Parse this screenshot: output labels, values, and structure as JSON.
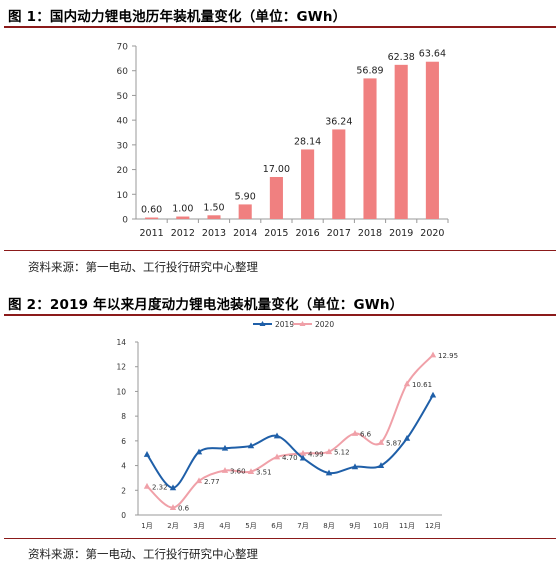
{
  "figure1": {
    "title": "图 1：国内动力锂电池历年装机量变化（单位：GWh）",
    "source": "资料来源：第一电动、工行投行研究中心整理"
  },
  "figure2": {
    "title": "图 2：2019 年以来月度动力锂电池装机量变化（单位：GWh）",
    "source": "资料来源：第一电动、工行投行研究中心整理"
  },
  "colors": {
    "bar": "#f08080",
    "series2019": "#1f5fa8",
    "series2020": "#f0a0a8",
    "rule": "#8b1a1a"
  },
  "chart_data": [
    {
      "type": "bar",
      "title": "国内动力锂电池历年装机量变化（单位：GWh）",
      "categories": [
        "2011",
        "2012",
        "2013",
        "2014",
        "2015",
        "2016",
        "2017",
        "2018",
        "2019",
        "2020"
      ],
      "values": [
        0.6,
        1.0,
        1.5,
        5.9,
        17.0,
        28.14,
        36.24,
        56.89,
        62.38,
        63.64
      ],
      "value_labels": [
        "0.60",
        "1.00",
        "1.50",
        "5.90",
        "17.00",
        "28.14",
        "36.24",
        "56.89",
        "62.38",
        "63.64"
      ],
      "y_ticks": [
        "0",
        "10",
        "20",
        "30",
        "40",
        "50",
        "60",
        "70"
      ],
      "ylim": [
        0,
        70
      ],
      "grid": false
    },
    {
      "type": "line",
      "title": "2019 年以来月度动力锂电池装机量变化（单位：GWh）",
      "categories": [
        "1月",
        "2月",
        "3月",
        "4月",
        "5月",
        "6月",
        "7月",
        "8月",
        "9月",
        "10月",
        "11月",
        "12月"
      ],
      "series": [
        {
          "name": "2019",
          "values": [
            4.9,
            2.2,
            5.1,
            5.4,
            5.6,
            6.4,
            4.6,
            3.4,
            3.9,
            4.0,
            6.2,
            9.7
          ],
          "labels": []
        },
        {
          "name": "2020",
          "values": [
            2.32,
            0.6,
            2.77,
            3.6,
            3.51,
            4.7,
            4.99,
            5.12,
            6.6,
            5.87,
            10.61,
            12.95
          ],
          "labels": [
            "2.32",
            "0.6",
            "2.77",
            "3.60",
            "3.51",
            "4.70",
            "4.99",
            "5.12",
            "6.6",
            "5.87",
            "10.61",
            "12.95"
          ]
        }
      ],
      "y_ticks": [
        "0",
        "2",
        "4",
        "6",
        "8",
        "10",
        "12",
        "14"
      ],
      "ylim": [
        0,
        14
      ],
      "legend": "top-center",
      "grid": false
    }
  ]
}
